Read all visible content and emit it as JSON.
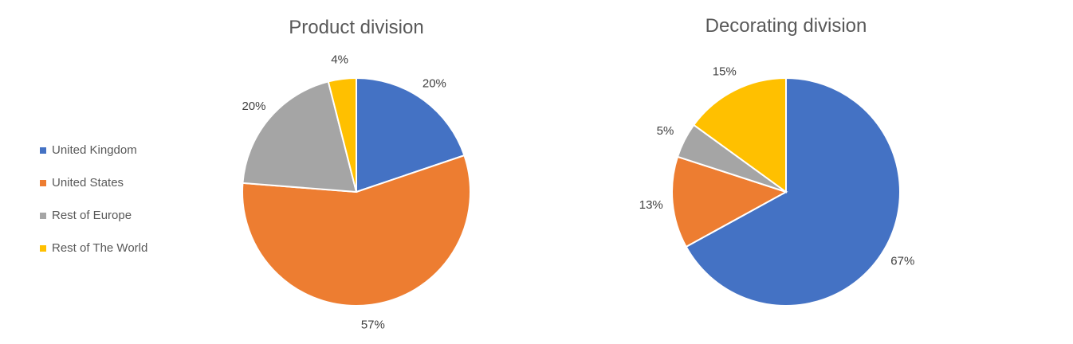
{
  "chart_data": [
    {
      "type": "pie",
      "title": "Product division",
      "categories": [
        "United Kingdom",
        "United States",
        "Rest of Europe",
        "Rest of The World"
      ],
      "values": [
        20,
        57,
        20,
        4
      ],
      "data_labels": [
        "20%",
        "57%",
        "20%",
        "4%"
      ]
    },
    {
      "type": "pie",
      "title": "Decorating division",
      "categories": [
        "United Kingdom",
        "United States",
        "Rest of Europe",
        "Rest of The World"
      ],
      "values": [
        67,
        13,
        5,
        15
      ],
      "data_labels": [
        "67%",
        "13%",
        "5%",
        "15%"
      ]
    }
  ],
  "legend": {
    "placement": "left",
    "items": [
      {
        "label": "United Kingdom",
        "color": "#4472C4"
      },
      {
        "label": "United States",
        "color": "#ED7D31"
      },
      {
        "label": "Rest of Europe",
        "color": "#A5A5A5"
      },
      {
        "label": "Rest of The World",
        "color": "#FFC000"
      }
    ]
  }
}
